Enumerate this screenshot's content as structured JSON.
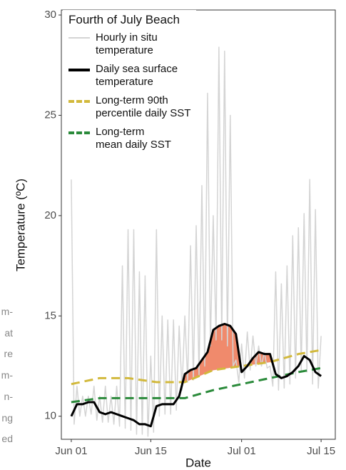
{
  "side_text": [
    "m-",
    "at",
    "re",
    "m-",
    "n-",
    "ng",
    "ed"
  ],
  "chart_data": {
    "type": "line",
    "legend_title": "Fourth of July Beach",
    "xlabel": "Date",
    "ylabel": "Temperature (ºC)",
    "xlim": [
      -1.75,
      46.5
    ],
    "ylim": [
      8.85,
      30.25
    ],
    "xticks": [
      {
        "value": 0,
        "label": "Jun 01"
      },
      {
        "value": 14,
        "label": "Jun 15"
      },
      {
        "value": 30,
        "label": "Jul 01"
      },
      {
        "value": 44,
        "label": "Jul 15"
      }
    ],
    "yticks": [
      10,
      15,
      20,
      25,
      30
    ],
    "grid": false,
    "legend": "top-left",
    "heat_fill_color": "#f08a6c",
    "x": [
      0,
      1,
      2,
      3,
      4,
      5,
      6,
      7,
      8,
      9,
      10,
      11,
      12,
      13,
      14,
      15,
      16,
      17,
      18,
      19,
      20,
      21,
      22,
      23,
      24,
      25,
      26,
      27,
      28,
      29,
      30,
      31,
      32,
      33,
      34,
      35,
      36,
      37,
      38,
      39,
      40,
      41,
      42,
      43,
      44
    ],
    "series": [
      {
        "name": "Hourly in situ\ntemperature",
        "color": "#d4d4d4",
        "width": 1.5,
        "dash": false,
        "x": [
          0,
          0.5,
          1,
          1.5,
          2,
          2.5,
          3,
          3.5,
          4,
          4.5,
          5,
          5.5,
          6,
          6.5,
          7,
          7.5,
          8,
          8.5,
          9,
          9.5,
          10,
          10.5,
          11,
          11.5,
          12,
          12.5,
          13,
          13.5,
          14,
          14.5,
          15,
          15.5,
          16,
          16.5,
          17,
          17.5,
          18,
          18.5,
          19,
          19.5,
          20,
          20.5,
          21,
          21.5,
          22,
          22.5,
          23,
          23.5,
          24,
          24.5,
          25,
          25.5,
          26,
          26.5,
          27,
          27.5,
          28,
          28.5,
          29,
          29.5,
          30,
          30.5,
          31,
          31.5,
          32,
          32.5,
          33,
          33.5,
          34,
          34.5,
          35,
          35.5,
          36,
          36.5,
          37,
          37.5,
          38,
          38.5,
          39,
          39.5,
          40,
          40.5,
          41,
          41.5,
          42,
          42.5,
          43,
          43.5,
          44
        ],
        "values": [
          21.8,
          9.6,
          11.5,
          10,
          11,
          10,
          11,
          10.1,
          11.5,
          9.8,
          11,
          9.7,
          11.5,
          9.7,
          11,
          9.6,
          11.5,
          9.5,
          17.5,
          9.4,
          19.3,
          9.3,
          19.3,
          9.1,
          17.2,
          9.1,
          17,
          9.0,
          13,
          9.2,
          19.3,
          10,
          15,
          10.1,
          14.8,
          10.1,
          14.8,
          10.3,
          14.5,
          11.3,
          15,
          11.7,
          18.5,
          11.8,
          19.5,
          12,
          21.5,
          12.5,
          26.1,
          13.5,
          20,
          13.8,
          28.4,
          13.8,
          28.2,
          13.5,
          25,
          12.5,
          12.8,
          11.7,
          13.6,
          11.9,
          14.2,
          12.3,
          14,
          12.5,
          13.5,
          12.5,
          13.2,
          12.4,
          12.5,
          11.5,
          17.2,
          11.3,
          16.6,
          11.4,
          17.5,
          11.6,
          19,
          11.9,
          19.4,
          12.3,
          20.1,
          12.2,
          21.8,
          11.6,
          20.3,
          11.4,
          14
        ]
      },
      {
        "name": "Daily sea surface\ntemperature",
        "color": "#000000",
        "width": 3,
        "dash": false,
        "values": [
          10.0,
          10.6,
          10.6,
          10.7,
          10.7,
          10.2,
          10.1,
          10.2,
          10.1,
          10.0,
          9.9,
          9.8,
          9.6,
          9.6,
          9.5,
          10.5,
          10.6,
          10.6,
          10.6,
          11.0,
          12.1,
          12.3,
          12.4,
          12.8,
          13.2,
          14.3,
          14.5,
          14.6,
          14.5,
          14.1,
          12.2,
          12.5,
          12.9,
          13.2,
          13.1,
          13.1,
          12.1,
          11.9,
          12.0,
          12.2,
          12.5,
          13.0,
          12.8,
          12.2,
          12.0
        ]
      },
      {
        "name": "Long-term 90th\npercentile daily SST",
        "color": "#d2b93c",
        "width": 3,
        "dash": true,
        "values": [
          11.6,
          11.66,
          11.72,
          11.78,
          11.84,
          11.9,
          11.9,
          11.9,
          11.9,
          11.9,
          11.9,
          11.86,
          11.82,
          11.78,
          11.74,
          11.7,
          11.7,
          11.7,
          11.7,
          11.7,
          11.7,
          11.82,
          11.94,
          12.06,
          12.18,
          12.3,
          12.34,
          12.38,
          12.42,
          12.46,
          12.5,
          12.54,
          12.58,
          12.62,
          12.66,
          12.7,
          12.78,
          12.86,
          12.94,
          13.02,
          13.1,
          13.15,
          13.2,
          13.25,
          13.3
        ]
      },
      {
        "name": "Long-term\nmean daily SST",
        "color": "#2a8a3a",
        "width": 3,
        "dash": true,
        "values": [
          10.7,
          10.74,
          10.78,
          10.82,
          10.86,
          10.9,
          10.9,
          10.9,
          10.9,
          10.9,
          10.9,
          10.9,
          10.9,
          10.9,
          10.9,
          10.9,
          10.9,
          10.9,
          10.9,
          10.9,
          10.9,
          10.98,
          11.06,
          11.14,
          11.22,
          11.3,
          11.36,
          11.42,
          11.48,
          11.54,
          11.6,
          11.66,
          11.72,
          11.78,
          11.84,
          11.9,
          11.96,
          12.02,
          12.08,
          12.14,
          12.2,
          12.25,
          12.3,
          12.35,
          12.4
        ]
      }
    ]
  }
}
